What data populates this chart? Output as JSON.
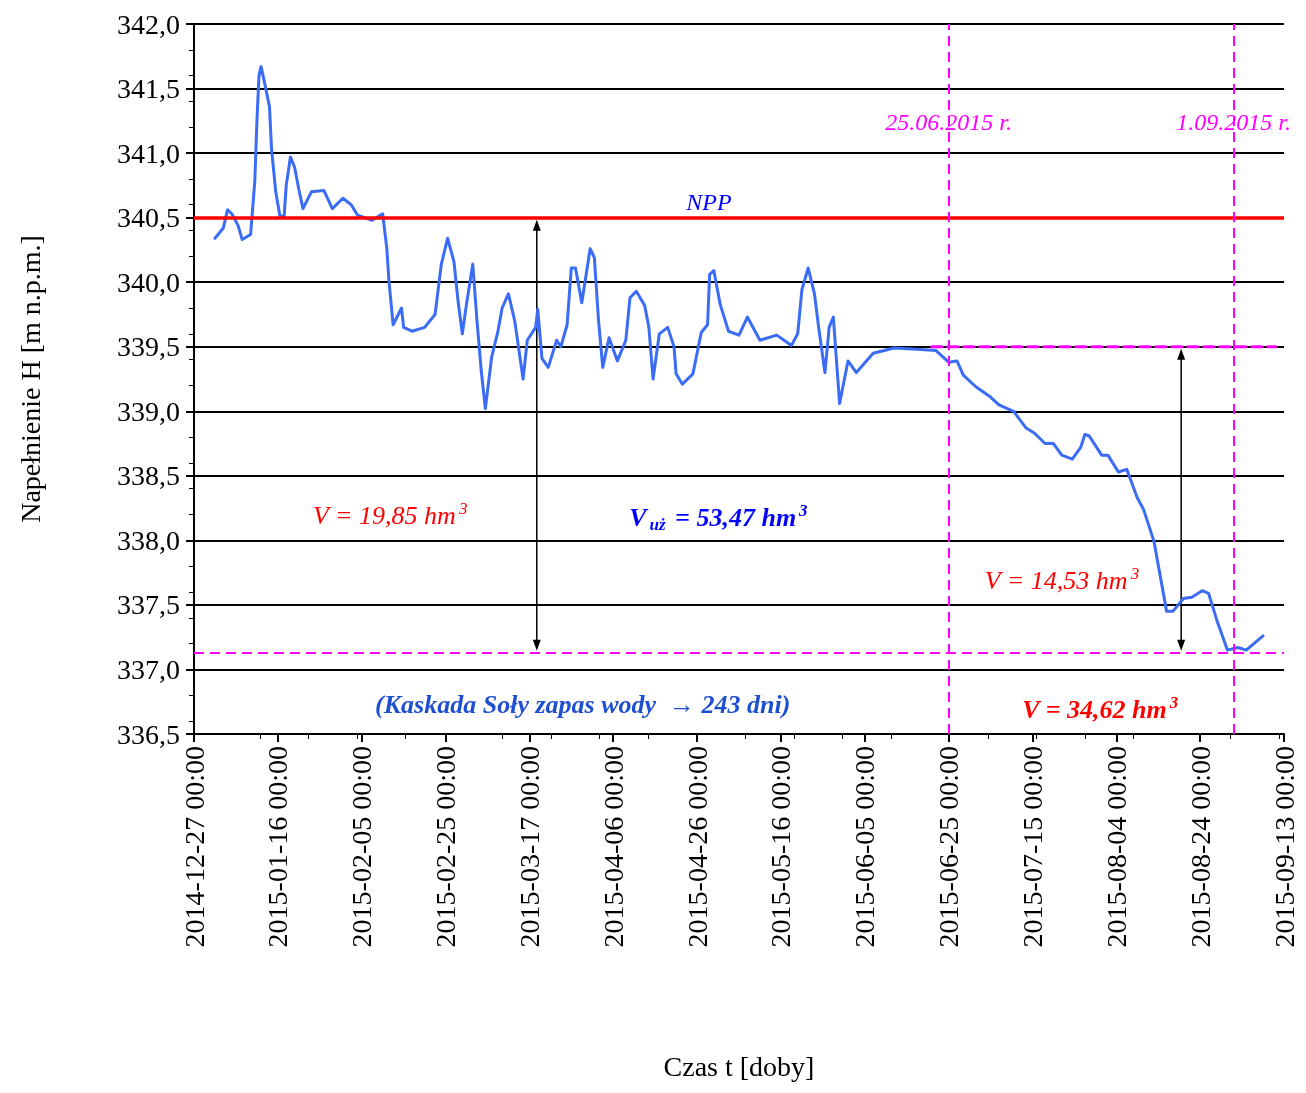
{
  "chart_data": {
    "type": "line",
    "xlabel": "Czas t [doby]",
    "ylabel": "Napełnienie H [m n.p.m.]",
    "xlim": [
      "2014-12-27",
      "2015-09-13"
    ],
    "xticks": [
      {
        "value": "2014-12-27",
        "label": "2014-12-27 00:00"
      },
      {
        "value": "2015-01-16",
        "label": "2015-01-16 00:00"
      },
      {
        "value": "2015-02-05",
        "label": "2015-02-05 00:00"
      },
      {
        "value": "2015-02-25",
        "label": "2015-02-25 00:00"
      },
      {
        "value": "2015-03-17",
        "label": "2015-03-17 00:00"
      },
      {
        "value": "2015-04-06",
        "label": "2015-04-06 00:00"
      },
      {
        "value": "2015-04-26",
        "label": "2015-04-26 00:00"
      },
      {
        "value": "2015-05-16",
        "label": "2015-05-16 00:00"
      },
      {
        "value": "2015-06-05",
        "label": "2015-06-05 00:00"
      },
      {
        "value": "2015-06-25",
        "label": "2015-06-25 00:00"
      },
      {
        "value": "2015-07-15",
        "label": "2015-07-15 00:00"
      },
      {
        "value": "2015-08-04",
        "label": "2015-08-04 00:00"
      },
      {
        "value": "2015-08-24",
        "label": "2015-08-24 00:00"
      },
      {
        "value": "2015-09-13",
        "label": "2015-09-13 00:00"
      }
    ],
    "ylim": [
      336.5,
      342.0
    ],
    "yticks": [
      {
        "value": 336.5,
        "label": "336,5"
      },
      {
        "value": 337.0,
        "label": "337,0"
      },
      {
        "value": 337.5,
        "label": "337,5"
      },
      {
        "value": 338.0,
        "label": "338,0"
      },
      {
        "value": 338.5,
        "label": "338,5"
      },
      {
        "value": 339.0,
        "label": "339,0"
      },
      {
        "value": 339.5,
        "label": "339,5"
      },
      {
        "value": 340.0,
        "label": "340,0"
      },
      {
        "value": 340.5,
        "label": "340,5"
      },
      {
        "value": 341.0,
        "label": "341,0"
      },
      {
        "value": 341.5,
        "label": "341,5"
      },
      {
        "value": 342.0,
        "label": "342,0"
      }
    ],
    "grid": "y",
    "marker": "none",
    "line_style": "solid",
    "x": [
      "2015-01-01",
      "2015-01-03",
      "2015-01-04",
      "2015-01-05",
      "2015-01-06T12:00",
      "2015-01-07T12:00",
      "2015-01-09T12:00",
      "2015-01-10T12:00",
      "2015-01-11",
      "2015-01-11T12:00",
      "2015-01-12",
      "2015-01-13",
      "2015-01-14",
      "2015-01-14T12:00",
      "2015-01-15T12:00",
      "2015-01-16T12:00",
      "2015-01-17T12:00",
      "2015-01-18",
      "2015-01-19",
      "2015-01-20",
      "2015-01-21",
      "2015-01-22",
      "2015-01-24",
      "2015-01-27",
      "2015-01-29",
      "2015-01-31T12:00",
      "2015-02-02T12:00",
      "2015-02-04",
      "2015-02-07T12:00",
      "2015-02-10",
      "2015-02-11",
      "2015-02-11T12:00",
      "2015-02-12T12:00",
      "2015-02-14T12:00",
      "2015-02-15",
      "2015-02-17",
      "2015-02-20",
      "2015-02-22T12:00",
      "2015-02-24",
      "2015-02-25T12:00",
      "2015-02-27",
      "2015-02-28",
      "2015-03-01",
      "2015-03-02",
      "2015-03-03T12:00",
      "2015-03-04T12:00",
      "2015-03-05T12:00",
      "2015-03-06T12:00",
      "2015-03-08",
      "2015-03-09T12:00",
      "2015-03-10T12:00",
      "2015-03-12",
      "2015-03-13T12:00",
      "2015-03-15T12:00",
      "2015-03-16T12:00",
      "2015-03-18T12:00",
      "2015-03-19",
      "2015-03-20",
      "2015-03-21T12:00",
      "2015-03-23T12:00",
      "2015-03-24T12:00",
      "2015-03-26",
      "2015-03-27",
      "2015-03-28",
      "2015-03-29T12:00",
      "2015-03-31T12:00",
      "2015-04-01T12:00",
      "2015-04-02T12:00",
      "2015-04-03T12:00",
      "2015-04-05",
      "2015-04-07",
      "2015-04-09",
      "2015-04-10",
      "2015-04-11T12:00",
      "2015-04-13T12:00",
      "2015-04-14T12:00",
      "2015-04-15T12:00",
      "2015-04-17",
      "2015-04-19",
      "2015-04-20T12:00",
      "2015-04-21",
      "2015-04-22T12:00",
      "2015-04-25",
      "2015-04-27",
      "2015-04-28T12:00",
      "2015-04-29",
      "2015-04-30",
      "2015-05-01T12:00",
      "2015-05-03T12:00",
      "2015-05-06",
      "2015-05-08",
      "2015-05-11",
      "2015-05-15",
      "2015-05-18T12:00",
      "2015-05-20",
      "2015-05-21",
      "2015-05-22T12:00",
      "2015-05-24",
      "2015-05-25",
      "2015-05-26T12:00",
      "2015-05-27T12:00",
      "2015-05-28T12:00",
      "2015-05-30",
      "2015-06-01",
      "2015-06-03",
      "2015-06-07",
      "2015-06-12",
      "2015-06-17T12:00",
      "2015-06-22",
      "2015-06-25",
      "2015-06-27",
      "2015-06-28T12:00",
      "2015-07-01T12:00",
      "2015-07-05",
      "2015-07-07",
      "2015-07-10T12:00",
      "2015-07-13T12:00",
      "2015-07-15T12:00",
      "2015-07-18",
      "2015-07-20",
      "2015-07-22",
      "2015-07-24T12:00",
      "2015-07-26T12:00",
      "2015-07-27T12:00",
      "2015-07-28T12:00",
      "2015-07-31T12:00",
      "2015-08-02",
      "2015-08-04T12:00",
      "2015-08-06T12:00",
      "2015-08-09",
      "2015-08-10T12:00",
      "2015-08-13",
      "2015-08-16",
      "2015-08-17T12:00",
      "2015-08-20",
      "2015-08-22",
      "2015-08-24T12:00",
      "2015-08-26",
      "2015-08-28",
      "2015-08-30T12:00",
      "2015-09-02",
      "2015-09-04",
      "2015-09-08"
    ],
    "series": [
      {
        "color": "#3b6cf5",
        "values": [
          340.34,
          340.42,
          340.56,
          340.53,
          340.44,
          340.33,
          340.37,
          340.78,
          341.24,
          341.6,
          341.67,
          341.52,
          341.36,
          341.03,
          340.7,
          340.51,
          340.51,
          340.75,
          340.97,
          340.89,
          340.72,
          340.57,
          340.7,
          340.71,
          340.57,
          340.65,
          340.6,
          340.52,
          340.48,
          340.53,
          340.26,
          340.01,
          339.67,
          339.8,
          339.65,
          339.62,
          339.65,
          339.75,
          340.14,
          340.34,
          340.16,
          339.85,
          339.6,
          339.83,
          340.14,
          339.7,
          339.32,
          339.02,
          339.42,
          339.62,
          339.8,
          339.91,
          339.7,
          339.25,
          339.55,
          339.65,
          339.79,
          339.41,
          339.34,
          339.55,
          339.5,
          339.67,
          340.11,
          340.11,
          339.84,
          340.26,
          340.19,
          339.7,
          339.34,
          339.57,
          339.39,
          339.55,
          339.88,
          339.93,
          339.82,
          339.65,
          339.25,
          339.6,
          339.65,
          339.5,
          339.29,
          339.21,
          339.29,
          339.61,
          339.67,
          340.06,
          340.09,
          339.83,
          339.62,
          339.59,
          339.73,
          339.55,
          339.59,
          339.51,
          339.6,
          339.94,
          340.11,
          339.91,
          339.65,
          339.3,
          339.65,
          339.73,
          339.06,
          339.39,
          339.3,
          339.45,
          339.49,
          339.48,
          339.47,
          339.38,
          339.39,
          339.28,
          339.19,
          339.11,
          339.05,
          339.0,
          338.87,
          338.83,
          338.75,
          338.75,
          338.66,
          338.63,
          338.72,
          338.82,
          338.81,
          338.66,
          338.66,
          338.53,
          338.55,
          338.33,
          338.24,
          337.99,
          337.45,
          337.45,
          337.55,
          337.56,
          337.61,
          337.59,
          337.38,
          337.15,
          337.17,
          337.15,
          337.26
        ]
      },
      {
        "color": "#ff00ff",
        "line_style": "dashed",
        "x": [
          "2015-06-21",
          "2015-09-11"
        ],
        "values": [
          339.5,
          339.5
        ]
      }
    ],
    "ref_lines": [
      {
        "axis": "y",
        "value": 340.5,
        "label": "NPP",
        "color": "#ff0000",
        "line_style": "solid"
      },
      {
        "axis": "y",
        "value": 337.13,
        "label": null,
        "color": "#ff00ff",
        "line_style": "dashed"
      },
      {
        "axis": "x",
        "value": "2015-06-25",
        "label": "25.06.2015 r.",
        "color": "#ff00ff",
        "line_style": "dashed"
      },
      {
        "axis": "x",
        "value": "2015-09-01",
        "label": "1.09.2015 r.",
        "color": "#ff00ff",
        "line_style": "dashed"
      }
    ],
    "annotations": [
      "V = 19,85 hm$^{3}$",
      "V$_{uż}$ = 53,47 hm$^{3}$",
      "V = 14,53 hm$^{3}$",
      "(Kaskada Soły zapas wody  → 243 dni)",
      "V = 34,62 hm$^{3}$"
    ]
  }
}
